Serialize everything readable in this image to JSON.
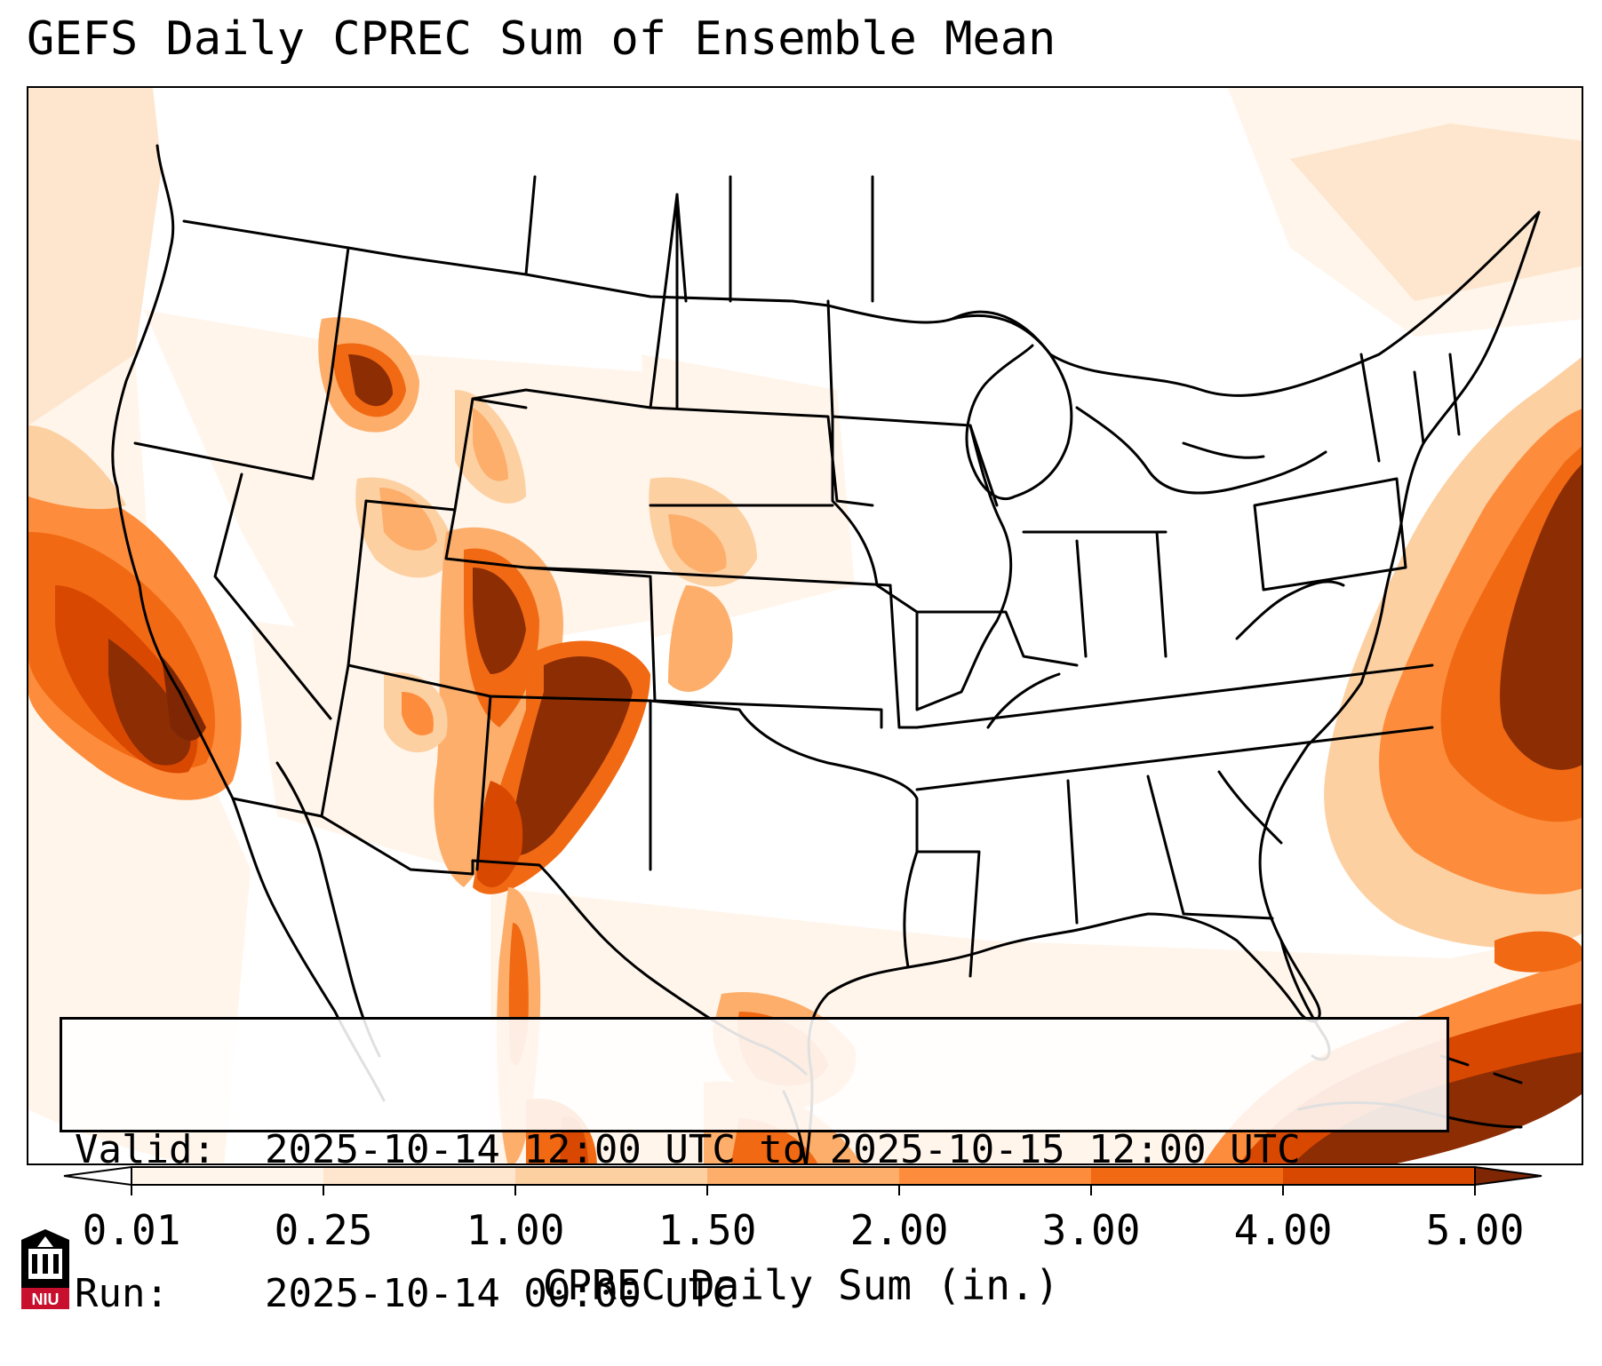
{
  "title": "GEFS Daily CPREC Sum of Ensemble Mean",
  "info": {
    "valid_key": "Valid:",
    "valid_value": "2025-10-14 12:00 UTC to 2025-10-15 12:00 UTC",
    "run_key": "Run:",
    "run_value": "2025-10-14 00:00 UTC"
  },
  "colorbar": {
    "label": "CPREC Daily Sum (in.)",
    "ticks": [
      "0.01",
      "0.25",
      "1.00",
      "1.50",
      "2.00",
      "3.00",
      "4.00",
      "5.00"
    ],
    "colors": [
      "#fff5eb",
      "#fee6ce",
      "#fdd0a2",
      "#fdae6b",
      "#fd8d3c",
      "#f16913",
      "#d94801",
      "#8c2d04"
    ],
    "under_color": "#ffffff",
    "over_color": "#7f2704"
  },
  "precip_field": {
    "units": "in.",
    "regions": [
      {
        "name": "Pacific off California",
        "level": 5.0
      },
      {
        "name": "Northern Arizona / New Mexico",
        "level": 5.0
      },
      {
        "name": "Colorado",
        "level": 4.0
      },
      {
        "name": "Idaho",
        "level": 4.0
      },
      {
        "name": "Western Atlantic",
        "level": 5.0
      },
      {
        "name": "Caribbean",
        "level": 5.0
      },
      {
        "name": "Western Gulf",
        "level": 2.0
      },
      {
        "name": "Eastern US interior",
        "level": 0.0
      }
    ]
  },
  "logo": {
    "text": "NIU",
    "color": "#c8102e"
  }
}
